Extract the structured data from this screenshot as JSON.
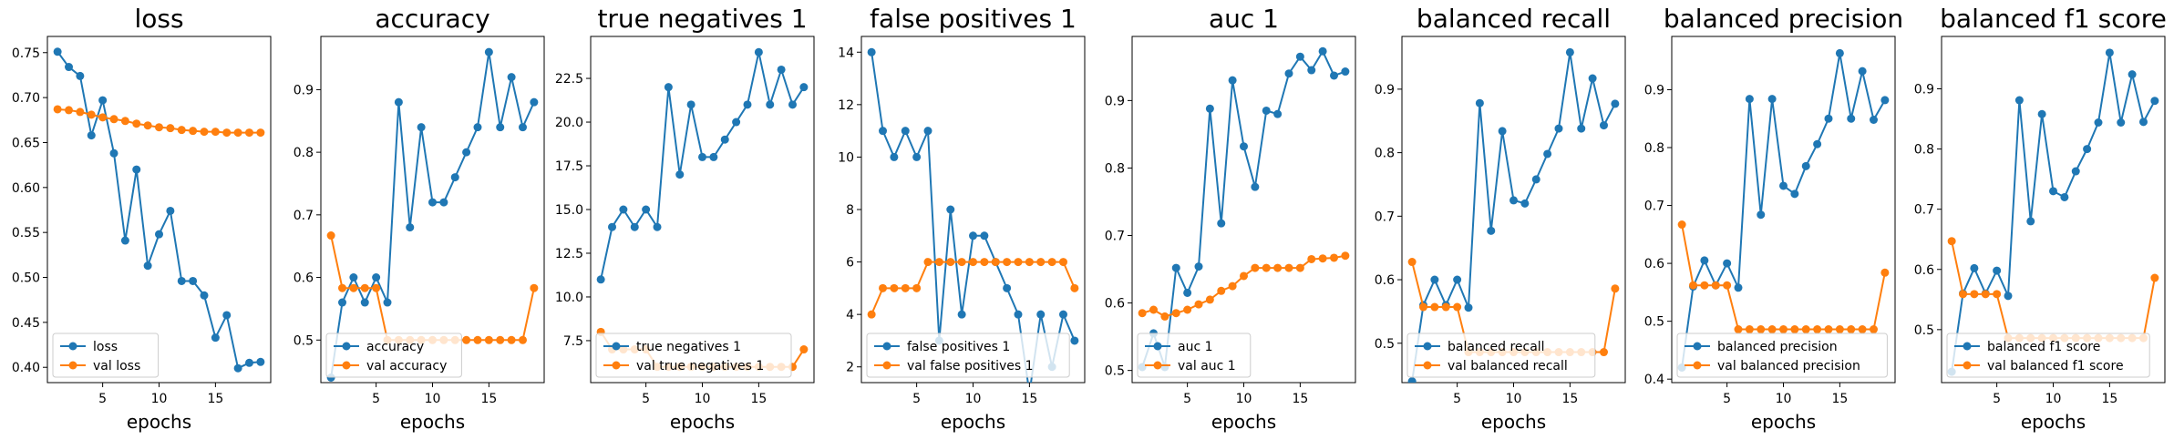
{
  "colors": {
    "train": "#1f77b4",
    "val": "#ff7f0e"
  },
  "chart_data": [
    {
      "type": "line",
      "title": "loss",
      "xlabel": "epochs",
      "ylabel": "",
      "xlim": [
        0.1,
        19.9
      ],
      "ylim": [
        0.383,
        0.768
      ],
      "xticks": [
        5,
        10,
        15
      ],
      "yticks": [
        0.4,
        0.45,
        0.5,
        0.55,
        0.6,
        0.65,
        0.7,
        0.75
      ],
      "ytick_labels": [
        "0.40",
        "0.45",
        "0.50",
        "0.55",
        "0.60",
        "0.65",
        "0.70",
        "0.75"
      ],
      "legend": "lower-left",
      "x": [
        1,
        2,
        3,
        4,
        5,
        6,
        7,
        8,
        9,
        10,
        11,
        12,
        13,
        14,
        15,
        16,
        17,
        18,
        19
      ],
      "series": [
        {
          "name": "loss",
          "values": [
            0.751,
            0.734,
            0.724,
            0.658,
            0.697,
            0.638,
            0.541,
            0.62,
            0.513,
            0.548,
            0.574,
            0.496,
            0.496,
            0.48,
            0.433,
            0.458,
            0.399,
            0.405,
            0.406
          ]
        },
        {
          "name": "val loss",
          "values": [
            0.687,
            0.686,
            0.684,
            0.681,
            0.678,
            0.676,
            0.674,
            0.671,
            0.669,
            0.667,
            0.666,
            0.664,
            0.663,
            0.662,
            0.662,
            0.661,
            0.661,
            0.661,
            0.661
          ]
        }
      ]
    },
    {
      "type": "line",
      "title": "accuracy",
      "xlabel": "epochs",
      "ylabel": "",
      "xlim": [
        0.1,
        19.9
      ],
      "ylim": [
        0.432,
        0.985
      ],
      "xticks": [
        5,
        10,
        15
      ],
      "yticks": [
        0.5,
        0.6,
        0.7,
        0.8,
        0.9
      ],
      "ytick_labels": [
        "0.5",
        "0.6",
        "0.7",
        "0.8",
        "0.9"
      ],
      "legend": "lower-left",
      "x": [
        1,
        2,
        3,
        4,
        5,
        6,
        7,
        8,
        9,
        10,
        11,
        12,
        13,
        14,
        15,
        16,
        17,
        18,
        19
      ],
      "series": [
        {
          "name": "accuracy",
          "values": [
            0.44,
            0.56,
            0.6,
            0.56,
            0.6,
            0.56,
            0.88,
            0.68,
            0.84,
            0.72,
            0.72,
            0.76,
            0.8,
            0.84,
            0.96,
            0.84,
            0.92,
            0.84,
            0.88
          ]
        },
        {
          "name": "val accuracy",
          "values": [
            0.667,
            0.583,
            0.583,
            0.583,
            0.583,
            0.5,
            0.5,
            0.5,
            0.5,
            0.5,
            0.5,
            0.5,
            0.5,
            0.5,
            0.5,
            0.5,
            0.5,
            0.5,
            0.583
          ]
        }
      ]
    },
    {
      "type": "line",
      "title": "true negatives 1",
      "xlabel": "epochs",
      "ylabel": "",
      "xlim": [
        0.1,
        19.9
      ],
      "ylim": [
        5.1,
        24.9
      ],
      "xticks": [
        5,
        10,
        15
      ],
      "yticks": [
        7.5,
        10.0,
        12.5,
        15.0,
        17.5,
        20.0,
        22.5
      ],
      "ytick_labels": [
        "7.5",
        "10.0",
        "12.5",
        "15.0",
        "17.5",
        "20.0",
        "22.5"
      ],
      "legend": "lower-left",
      "x": [
        1,
        2,
        3,
        4,
        5,
        6,
        7,
        8,
        9,
        10,
        11,
        12,
        13,
        14,
        15,
        16,
        17,
        18,
        19
      ],
      "series": [
        {
          "name": "true negatives 1",
          "values": [
            11,
            14,
            15,
            14,
            15,
            14,
            22,
            17,
            21,
            18,
            18,
            19,
            20,
            21,
            24,
            21,
            23,
            21,
            22
          ]
        },
        {
          "name": "val true negatives 1",
          "values": [
            8,
            7,
            7,
            7,
            7,
            6,
            6,
            6,
            6,
            6,
            6,
            6,
            6,
            6,
            6,
            6,
            6,
            6,
            7
          ]
        }
      ]
    },
    {
      "type": "line",
      "title": "false positives 1",
      "xlabel": "epochs",
      "ylabel": "",
      "xlim": [
        0.1,
        19.9
      ],
      "ylim": [
        1.4,
        14.6
      ],
      "xticks": [
        5,
        10,
        15
      ],
      "yticks": [
        2,
        4,
        6,
        8,
        10,
        12,
        14
      ],
      "ytick_labels": [
        "2",
        "4",
        "6",
        "8",
        "10",
        "12",
        "14"
      ],
      "legend": "lower-left",
      "x": [
        1,
        2,
        3,
        4,
        5,
        6,
        7,
        8,
        9,
        10,
        11,
        12,
        13,
        14,
        15,
        16,
        17,
        18,
        19
      ],
      "series": [
        {
          "name": "false positives 1",
          "values": [
            14,
            11,
            10,
            11,
            10,
            11,
            3,
            8,
            4,
            7,
            7,
            6,
            5,
            4,
            1,
            4,
            2,
            4,
            3
          ]
        },
        {
          "name": "val false positives 1",
          "values": [
            4,
            5,
            5,
            5,
            5,
            6,
            6,
            6,
            6,
            6,
            6,
            6,
            6,
            6,
            6,
            6,
            6,
            6,
            5
          ]
        }
      ]
    },
    {
      "type": "line",
      "title": "auc 1",
      "xlabel": "epochs",
      "ylabel": "",
      "xlim": [
        0.1,
        19.9
      ],
      "ylim": [
        0.482,
        0.995
      ],
      "xticks": [
        5,
        10,
        15
      ],
      "yticks": [
        0.5,
        0.6,
        0.7,
        0.8,
        0.9
      ],
      "ytick_labels": [
        "0.5",
        "0.6",
        "0.7",
        "0.8",
        "0.9"
      ],
      "legend": "lower-left",
      "x": [
        1,
        2,
        3,
        4,
        5,
        6,
        7,
        8,
        9,
        10,
        11,
        12,
        13,
        14,
        15,
        16,
        17,
        18,
        19
      ],
      "series": [
        {
          "name": "auc 1",
          "values": [
            0.505,
            0.555,
            0.505,
            0.652,
            0.615,
            0.654,
            0.888,
            0.718,
            0.93,
            0.832,
            0.772,
            0.885,
            0.88,
            0.94,
            0.965,
            0.945,
            0.973,
            0.937,
            0.943
          ]
        },
        {
          "name": "val auc 1",
          "values": [
            0.585,
            0.59,
            0.58,
            0.585,
            0.59,
            0.598,
            0.605,
            0.618,
            0.625,
            0.64,
            0.652,
            0.652,
            0.652,
            0.652,
            0.652,
            0.665,
            0.666,
            0.667,
            0.67
          ]
        }
      ]
    },
    {
      "type": "line",
      "title": "balanced recall",
      "xlabel": "epochs",
      "ylabel": "",
      "xlim": [
        0.1,
        19.9
      ],
      "ylim": [
        0.438,
        0.983
      ],
      "xticks": [
        5,
        10,
        15
      ],
      "yticks": [
        0.5,
        0.6,
        0.7,
        0.8,
        0.9
      ],
      "ytick_labels": [
        "0.5",
        "0.6",
        "0.7",
        "0.8",
        "0.9"
      ],
      "legend": "lower-left",
      "x": [
        1,
        2,
        3,
        4,
        5,
        6,
        7,
        8,
        9,
        10,
        11,
        12,
        13,
        14,
        15,
        16,
        17,
        18,
        19
      ],
      "series": [
        {
          "name": "balanced recall",
          "values": [
            0.44,
            0.56,
            0.6,
            0.56,
            0.6,
            0.556,
            0.878,
            0.677,
            0.834,
            0.725,
            0.72,
            0.758,
            0.798,
            0.838,
            0.958,
            0.838,
            0.917,
            0.843,
            0.877
          ]
        },
        {
          "name": "val balanced recall",
          "values": [
            0.628,
            0.557,
            0.557,
            0.557,
            0.557,
            0.486,
            0.486,
            0.486,
            0.486,
            0.486,
            0.486,
            0.486,
            0.486,
            0.486,
            0.486,
            0.486,
            0.486,
            0.486,
            0.586
          ]
        }
      ]
    },
    {
      "type": "line",
      "title": "balanced precision",
      "xlabel": "epochs",
      "ylabel": "",
      "xlim": [
        0.1,
        19.9
      ],
      "ylim": [
        0.394,
        0.992
      ],
      "xticks": [
        5,
        10,
        15
      ],
      "yticks": [
        0.4,
        0.5,
        0.6,
        0.7,
        0.8,
        0.9
      ],
      "ytick_labels": [
        "0.4",
        "0.5",
        "0.6",
        "0.7",
        "0.8",
        "0.9"
      ],
      "legend": "lower-left",
      "x": [
        1,
        2,
        3,
        4,
        5,
        6,
        7,
        8,
        9,
        10,
        11,
        12,
        13,
        14,
        15,
        16,
        17,
        18,
        19
      ],
      "series": [
        {
          "name": "balanced precision",
          "values": [
            0.42,
            0.56,
            0.605,
            0.562,
            0.6,
            0.558,
            0.884,
            0.684,
            0.884,
            0.734,
            0.72,
            0.768,
            0.806,
            0.85,
            0.963,
            0.85,
            0.932,
            0.848,
            0.882
          ]
        },
        {
          "name": "val balanced precision",
          "values": [
            0.667,
            0.562,
            0.562,
            0.562,
            0.562,
            0.486,
            0.486,
            0.486,
            0.486,
            0.486,
            0.486,
            0.486,
            0.486,
            0.486,
            0.486,
            0.486,
            0.486,
            0.486,
            0.584
          ]
        }
      ]
    },
    {
      "type": "line",
      "title": "balanced f1 score",
      "xlabel": "epochs",
      "ylabel": "",
      "xlim": [
        0.1,
        19.9
      ],
      "ylim": [
        0.412,
        0.987
      ],
      "xticks": [
        5,
        10,
        15
      ],
      "yticks": [
        0.5,
        0.6,
        0.7,
        0.8,
        0.9
      ],
      "ytick_labels": [
        "0.5",
        "0.6",
        "0.7",
        "0.8",
        "0.9"
      ],
      "legend": "lower-left",
      "x": [
        1,
        2,
        3,
        4,
        5,
        6,
        7,
        8,
        9,
        10,
        11,
        12,
        13,
        14,
        15,
        16,
        17,
        18,
        19
      ],
      "series": [
        {
          "name": "balanced f1 score",
          "values": [
            0.43,
            0.56,
            0.602,
            0.56,
            0.598,
            0.556,
            0.881,
            0.68,
            0.858,
            0.73,
            0.72,
            0.763,
            0.8,
            0.844,
            0.96,
            0.844,
            0.924,
            0.845,
            0.88
          ]
        },
        {
          "name": "val balanced f1 score",
          "values": [
            0.647,
            0.559,
            0.559,
            0.559,
            0.559,
            0.486,
            0.486,
            0.486,
            0.486,
            0.486,
            0.486,
            0.486,
            0.486,
            0.486,
            0.486,
            0.486,
            0.486,
            0.486,
            0.586
          ]
        }
      ]
    }
  ]
}
